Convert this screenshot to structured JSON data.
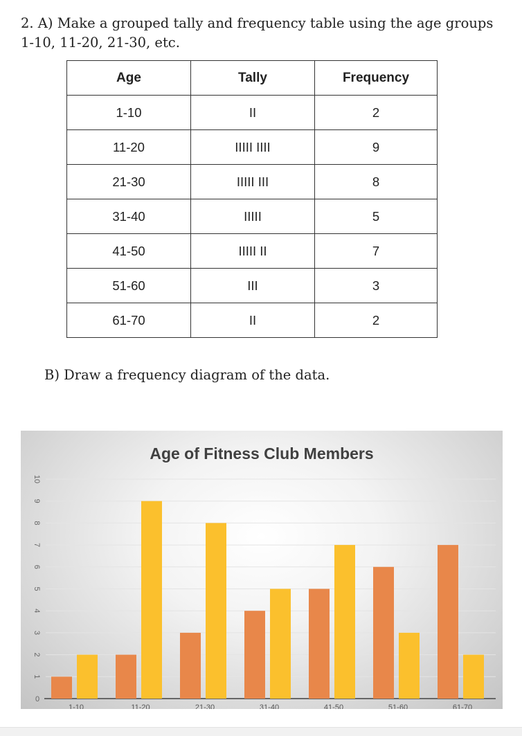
{
  "question_a": "2. A) Make a grouped tally and frequency table using the age groups 1-10, 11-20, 21-30, etc.",
  "table": {
    "headers": [
      "Age",
      "Tally",
      "Frequency"
    ],
    "rows": [
      {
        "age": "1-10",
        "tally": "II",
        "frequency": "2"
      },
      {
        "age": "11-20",
        "tally": "IIIII IIII",
        "frequency": "9"
      },
      {
        "age": "21-30",
        "tally": "IIIII III",
        "frequency": "8"
      },
      {
        "age": "31-40",
        "tally": "IIIII",
        "frequency": "5"
      },
      {
        "age": "41-50",
        "tally": "IIIII II",
        "frequency": "7"
      },
      {
        "age": "51-60",
        "tally": "III",
        "frequency": "3"
      },
      {
        "age": "61-70",
        "tally": "II",
        "frequency": "2"
      }
    ]
  },
  "question_b": "B) Draw a frequency diagram of the data.",
  "chart_data": {
    "type": "bar",
    "title": "Age of Fitness Club Members",
    "categories": [
      "1-10",
      "11-20",
      "21-30",
      "31-40",
      "41-50",
      "51-60",
      "61-70"
    ],
    "series": [
      {
        "values": [
          1,
          2,
          3,
          4,
          5,
          6,
          7
        ],
        "color": "#E8874A"
      },
      {
        "values": [
          2,
          9,
          8,
          5,
          7,
          3,
          2
        ],
        "color": "#FBC02D"
      }
    ],
    "yticks": [
      "0",
      "1",
      "2",
      "3",
      "4",
      "5",
      "6",
      "7",
      "8",
      "9",
      "10"
    ],
    "ylim": [
      0,
      10
    ],
    "grid": true,
    "legend": "none"
  }
}
